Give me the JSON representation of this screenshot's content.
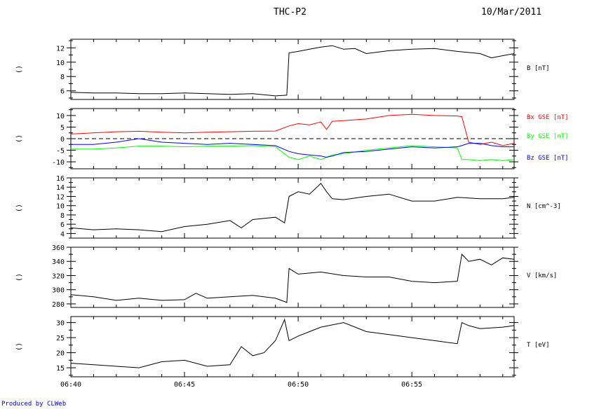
{
  "header": {
    "title": "THC-P2",
    "date": "10/Mar/2011"
  },
  "footer": {
    "credit": "Produced by CLWeb"
  },
  "chart_data": [
    {
      "type": "line",
      "panel_left_label": "()",
      "ylabel": "B [nT]",
      "ylim": [
        4.8,
        13.2
      ],
      "yticks": [
        6,
        8,
        10,
        12
      ],
      "x": [
        "06:40",
        "06:41",
        "06:42",
        "06:43",
        "06:44",
        "06:45",
        "06:46",
        "06:47",
        "06:48",
        "06:49",
        "06:49:30",
        "06:49:36",
        "06:50",
        "06:50:30",
        "06:51",
        "06:51:30",
        "06:52",
        "06:52:30",
        "06:53",
        "06:54",
        "06:55",
        "06:56",
        "06:57",
        "06:58",
        "06:58:30",
        "06:59",
        "06:59:30"
      ],
      "series": [
        {
          "name": "B",
          "color": "#000000",
          "values": [
            5.8,
            5.7,
            5.7,
            5.6,
            5.6,
            5.7,
            5.6,
            5.5,
            5.6,
            5.3,
            5.4,
            11.3,
            11.5,
            11.8,
            12.1,
            12.3,
            11.8,
            11.9,
            11.2,
            11.6,
            11.8,
            11.9,
            11.5,
            11.2,
            10.6,
            10.9,
            11.2
          ]
        }
      ]
    },
    {
      "type": "line",
      "panel_left_label": "()",
      "ylim": [
        -13,
        13
      ],
      "yticks": [
        -10,
        -5,
        0,
        5,
        10
      ],
      "zero_line": true,
      "x": [
        "06:40",
        "06:41",
        "06:42",
        "06:43",
        "06:44",
        "06:45",
        "06:46",
        "06:47",
        "06:48",
        "06:49",
        "06:49:36",
        "06:50",
        "06:50:30",
        "06:51",
        "06:51:15",
        "06:51:30",
        "06:52",
        "06:53",
        "06:54",
        "06:55",
        "06:56",
        "06:57",
        "06:57:12",
        "06:57:30",
        "06:58",
        "06:58:30",
        "06:59",
        "06:59:30"
      ],
      "series": [
        {
          "name": "Bx GSE [nT]",
          "color": "#ff0000",
          "values": [
            2.0,
            2.5,
            3.0,
            3.2,
            2.8,
            2.5,
            2.8,
            3.0,
            3.2,
            3.3,
            5.5,
            6.5,
            6.0,
            7.2,
            4.0,
            7.5,
            7.8,
            8.5,
            10.0,
            10.5,
            10.0,
            9.8,
            9.5,
            -1.5,
            -2.5,
            -1.5,
            -3.0,
            -2.0
          ]
        },
        {
          "name": "By GSE [nT]",
          "color": "#00ff00",
          "values": [
            -4.5,
            -4.5,
            -4.0,
            -3.2,
            -3.2,
            -3.5,
            -3.2,
            -3.2,
            -3.0,
            -3.5,
            -8.0,
            -9.0,
            -7.5,
            -9.0,
            -8.0,
            -7.0,
            -6.5,
            -5.0,
            -4.0,
            -3.0,
            -3.5,
            -4.0,
            -9.0,
            -9.0,
            -9.5,
            -9.0,
            -9.5,
            -9.0
          ]
        },
        {
          "name": "Bz GSE [nT]",
          "color": "#0000ff",
          "values": [
            -2.5,
            -2.5,
            -1.5,
            0.0,
            -1.5,
            -2.0,
            -2.5,
            -2.0,
            -2.5,
            -3.0,
            -5.5,
            -6.5,
            -7.0,
            -7.5,
            -8.0,
            -7.5,
            -6.0,
            -5.5,
            -4.5,
            -3.5,
            -4.0,
            -3.5,
            -3.0,
            -2.0,
            -2.0,
            -3.0,
            -3.5,
            -3.5
          ]
        }
      ]
    },
    {
      "type": "line",
      "panel_left_label": "()",
      "ylabel": "N [cm^-3]",
      "ylim": [
        3,
        16
      ],
      "yticks": [
        4,
        6,
        8,
        10,
        12,
        14,
        16
      ],
      "x": [
        "06:40",
        "06:41",
        "06:42",
        "06:43",
        "06:44",
        "06:45",
        "06:46",
        "06:47",
        "06:47:30",
        "06:48",
        "06:49",
        "06:49:24",
        "06:49:36",
        "06:50",
        "06:50:30",
        "06:51",
        "06:51:15",
        "06:51:30",
        "06:52",
        "06:53",
        "06:54",
        "06:55",
        "06:56",
        "06:57",
        "06:58",
        "06:59",
        "06:59:30"
      ],
      "series": [
        {
          "name": "N",
          "color": "#000000",
          "values": [
            5.2,
            4.8,
            5.0,
            4.8,
            4.4,
            5.5,
            6.0,
            6.8,
            5.2,
            7.0,
            7.5,
            6.3,
            12.0,
            13.0,
            12.5,
            14.8,
            13.0,
            11.5,
            11.3,
            12.0,
            12.5,
            11.0,
            11.0,
            11.8,
            11.5,
            11.5,
            11.8
          ]
        }
      ]
    },
    {
      "type": "line",
      "panel_left_label": "()",
      "ylabel": "V [km/s]",
      "ylim": [
        275,
        360
      ],
      "yticks": [
        280,
        300,
        320,
        340,
        360
      ],
      "x": [
        "06:40",
        "06:41",
        "06:42",
        "06:43",
        "06:44",
        "06:45",
        "06:45:30",
        "06:46",
        "06:47",
        "06:48",
        "06:49",
        "06:49:30",
        "06:49:36",
        "06:50",
        "06:51",
        "06:52",
        "06:53",
        "06:54",
        "06:55",
        "06:56",
        "06:57",
        "06:57:12",
        "06:57:30",
        "06:58",
        "06:58:30",
        "06:59",
        "06:59:30"
      ],
      "series": [
        {
          "name": "V",
          "color": "#000000",
          "values": [
            293,
            290,
            285,
            288,
            285,
            286,
            295,
            288,
            290,
            292,
            288,
            282,
            330,
            322,
            325,
            320,
            318,
            318,
            312,
            310,
            312,
            350,
            340,
            343,
            335,
            345,
            343
          ]
        }
      ]
    },
    {
      "type": "line",
      "panel_left_label": "()",
      "ylabel": "T [eV]",
      "ylim": [
        12,
        32
      ],
      "yticks": [
        15,
        20,
        25,
        30
      ],
      "x": [
        "06:40",
        "06:41",
        "06:42",
        "06:43",
        "06:44",
        "06:45",
        "06:46",
        "06:47",
        "06:47:30",
        "06:48",
        "06:48:30",
        "06:49",
        "06:49:24",
        "06:49:36",
        "06:50",
        "06:50:30",
        "06:51",
        "06:52",
        "06:53",
        "06:54",
        "06:55",
        "06:56",
        "06:57",
        "06:57:12",
        "06:57:30",
        "06:58",
        "06:59",
        "06:59:30"
      ],
      "series": [
        {
          "name": "T",
          "color": "#000000",
          "values": [
            16.5,
            16.0,
            15.5,
            15.0,
            17.0,
            17.5,
            15.5,
            16.0,
            22.0,
            19.0,
            20.0,
            24.0,
            31.0,
            24.0,
            25.5,
            27.0,
            28.5,
            30.0,
            27.0,
            26.0,
            25.0,
            24.0,
            23.0,
            30.0,
            29.0,
            28.0,
            28.5,
            29.0
          ]
        }
      ]
    }
  ],
  "x_axis": {
    "tick_labels": [
      "06:40",
      "06:45",
      "06:50",
      "06:55"
    ],
    "major_ticks": [
      "06:40",
      "06:45",
      "06:50",
      "06:55"
    ],
    "range": [
      "06:40",
      "06:59:30"
    ]
  }
}
